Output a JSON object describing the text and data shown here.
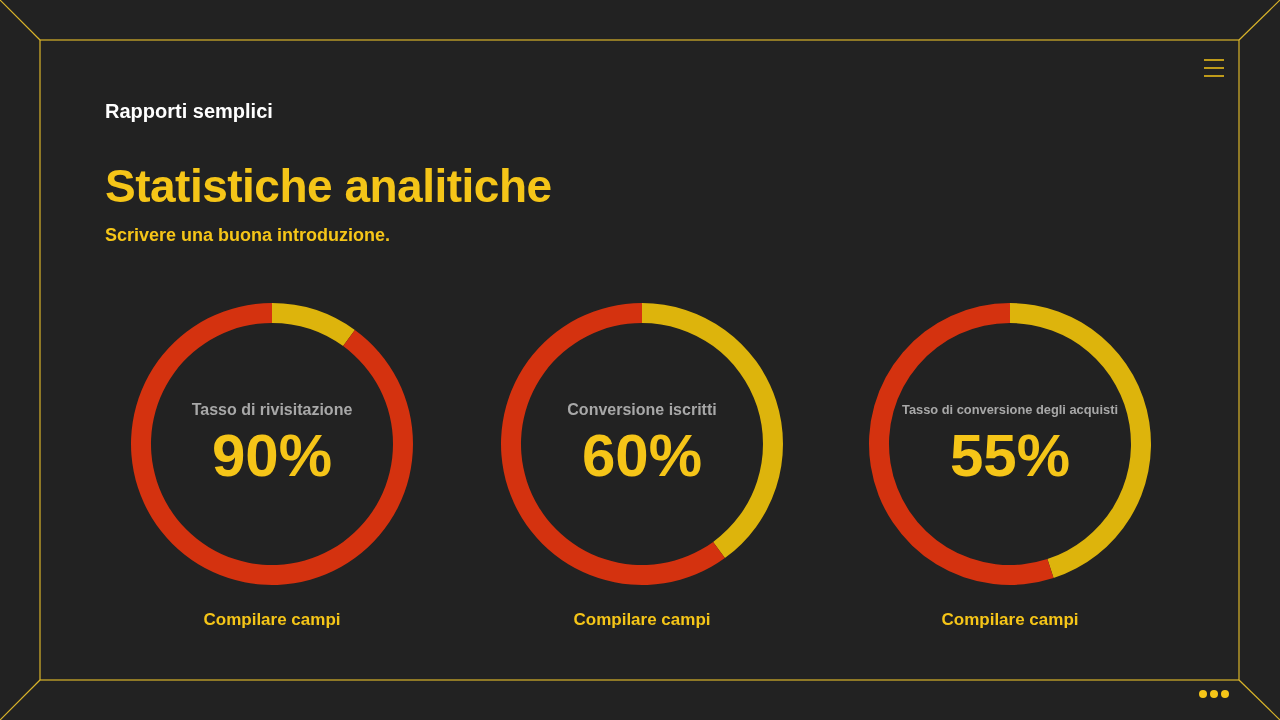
{
  "chart_data": [
    {
      "type": "other",
      "title": "Statistiche analitiche",
      "subtitle": "Scrivere una buona introduzione.",
      "annotations": [
        "Rapporti semplici"
      ]
    },
    {
      "type": "donut",
      "title": "Tasso di rivisitazione",
      "categories": [
        null,
        null
      ],
      "values": [
        10,
        90
      ],
      "colors": [
        "#ddb40c",
        "#d4320f"
      ],
      "value_labels": [
        null,
        "90%"
      ],
      "annotations": [
        "Compilare campi"
      ]
    },
    {
      "type": "donut",
      "title": "Conversione iscritti",
      "categories": [
        null,
        null
      ],
      "values": [
        40,
        60
      ],
      "colors": [
        "#ddb40c",
        "#d4320f"
      ],
      "value_labels": [
        null,
        "60%"
      ],
      "annotations": [
        "Compilare campi"
      ]
    },
    {
      "type": "donut",
      "title": "Tasso di conversione degli acquisti",
      "categories": [
        null,
        null
      ],
      "values": [
        45,
        55
      ],
      "colors": [
        "#ddb40c",
        "#d4320f"
      ],
      "value_labels": [
        null,
        "55%"
      ],
      "annotations": [
        "Compilare campi"
      ]
    }
  ]
}
